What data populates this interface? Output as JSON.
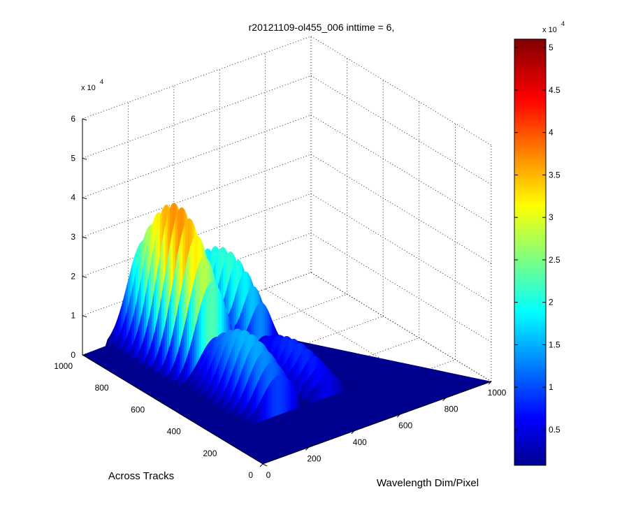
{
  "chart_data": [
    {
      "type": "surface",
      "title": "r20121109-ol455_006 inttime = 6,",
      "xlabel": "Wavelength Dim/Pixel",
      "ylabel": "Across Tracks",
      "zlabel": "",
      "z_multiplier": {
        "base": "x 10",
        "exp": "4"
      },
      "xlim": [
        0,
        1000
      ],
      "ylim": [
        0,
        1000
      ],
      "zlim": [
        0,
        60000
      ],
      "x_ticks": [
        "0",
        "200",
        "400",
        "600",
        "800",
        "1000"
      ],
      "y_ticks": [
        "0",
        "200",
        "400",
        "600",
        "800",
        "1000"
      ],
      "z_ticks": [
        "0",
        "1",
        "2",
        "3",
        "4",
        "5",
        "6"
      ],
      "grid": true,
      "colormap": "jet",
      "features": [
        {
          "name": "",
          "x_range": [
            0,
            1000
          ],
          "y_range": [
            620,
            1000
          ],
          "peak_z": 40000
        },
        {
          "name": "",
          "x_range": [
            0,
            1000
          ],
          "y_range": [
            250,
            600
          ],
          "peak_z": 17000
        },
        {
          "name": "",
          "x_range": [
            0,
            1000
          ],
          "y_range": [
            0,
            180
          ],
          "peak_z": 0
        }
      ]
    },
    {
      "type": "colorbar",
      "clim": [
        800,
        51000
      ],
      "ticks": [
        "0.5",
        "1",
        "1.5",
        "2",
        "2.5",
        "3",
        "3.5",
        "4",
        "4.5",
        "5"
      ],
      "tick_values": [
        5000,
        10000,
        15000,
        20000,
        25000,
        30000,
        35000,
        40000,
        45000,
        50000
      ],
      "multiplier": {
        "base": "x 10",
        "exp": "4"
      },
      "colors": [
        "#00008f",
        "#0000ff",
        "#00ffff",
        "#ffff00",
        "#ff0000",
        "#800000"
      ]
    }
  ]
}
